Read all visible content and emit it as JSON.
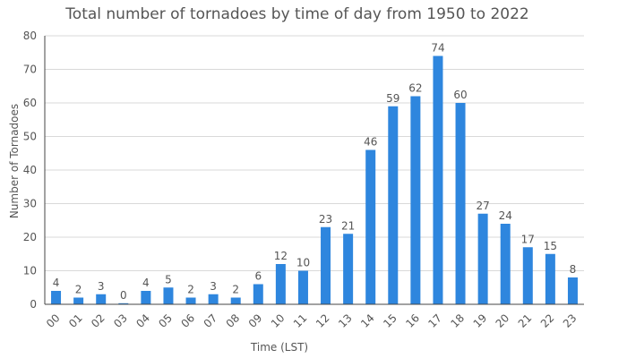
{
  "chart_data": {
    "type": "bar",
    "title": "Total number of tornadoes by time of day from 1950 to 2022",
    "xlabel": "Time (LST)",
    "ylabel": "Number of Tornadoes",
    "ylim": [
      0,
      80
    ],
    "yticks": [
      0,
      10,
      20,
      30,
      40,
      50,
      60,
      70,
      80
    ],
    "grid": true,
    "categories": [
      "00",
      "01",
      "02",
      "03",
      "04",
      "05",
      "06",
      "07",
      "08",
      "09",
      "10",
      "11",
      "12",
      "13",
      "14",
      "15",
      "16",
      "17",
      "18",
      "19",
      "20",
      "21",
      "22",
      "23"
    ],
    "values": [
      4,
      2,
      3,
      0,
      4,
      5,
      2,
      3,
      2,
      6,
      12,
      10,
      23,
      21,
      46,
      59,
      62,
      74,
      60,
      27,
      24,
      17,
      15,
      8
    ],
    "bar_color": "#2e86de"
  }
}
